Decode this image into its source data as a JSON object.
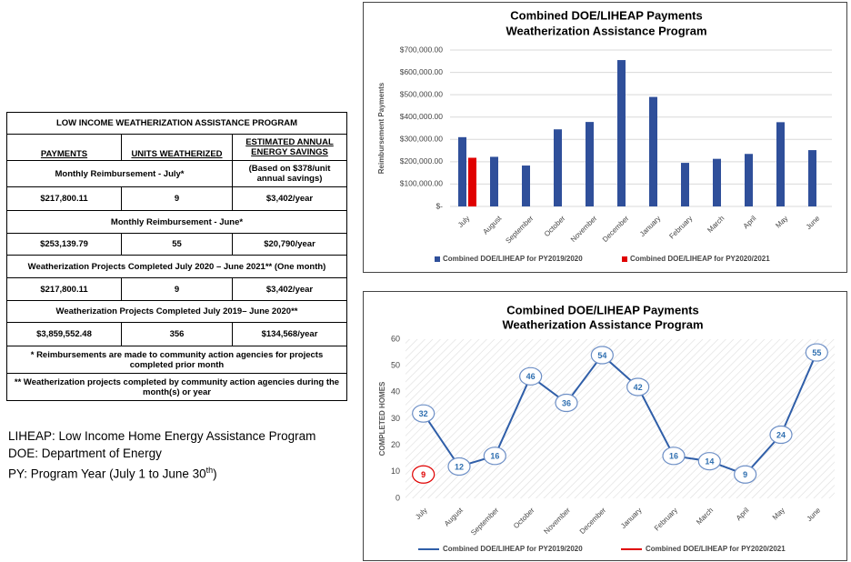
{
  "table": {
    "title": "LOW INCOME WEATHERIZATION ASSISTANCE PROGRAM",
    "headers": [
      "PAYMENTS",
      "UNITS WEATHERIZED",
      "ESTIMATED ANNUAL ENERGY SAVINGS"
    ],
    "rows": [
      [
        "Monthly Reimbursement - July*",
        "(Based on $378/unit annual savings)"
      ],
      [
        "$217,800.11",
        "9",
        "$3,402/year"
      ],
      [
        "Monthly Reimbursement - June*"
      ],
      [
        "$253,139.79",
        "55",
        "$20,790/year"
      ],
      [
        "Weatherization Projects Completed July 2020 – June 2021** (One month)"
      ],
      [
        "$217,800.11",
        "9",
        "$3,402/year"
      ],
      [
        "Weatherization Projects Completed July 2019– June 2020**"
      ],
      [
        "$3,859,552.48",
        "356",
        "$134,568/year"
      ]
    ],
    "footnotes": [
      "* Reimbursements are made to community action agencies for projects completed prior month",
      "** Weatherization projects completed by community action agencies during the month(s) or year"
    ]
  },
  "notes": [
    "LIHEAP: Low Income Home Energy Assistance Program",
    "DOE: Department of Energy",
    {
      "text": "PY: Program Year (July 1 to June 30",
      "sup": "th",
      "tail": ")"
    }
  ],
  "chart_data": [
    {
      "type": "bar",
      "title": "Combined DOE/LIHEAP Payments",
      "subtitle": "Weatherization Assistance Program",
      "y_label": "Reimbursement Payments",
      "categories": [
        "July",
        "August",
        "September",
        "October",
        "November",
        "December",
        "January",
        "February",
        "March",
        "April",
        "May",
        "June"
      ],
      "series": [
        {
          "name": "Combined DOE/LIHEAP for PY2019/2020",
          "color": "#2f4f9a",
          "values": [
            310000,
            222000,
            183000,
            345000,
            378000,
            655000,
            490000,
            195000,
            213000,
            235000,
            377000,
            252000
          ]
        },
        {
          "name": "Combined DOE/LIHEAP for PY2020/2021",
          "color": "#e00000",
          "values": [
            217800.11,
            null,
            null,
            null,
            null,
            null,
            null,
            null,
            null,
            null,
            null,
            null
          ]
        }
      ],
      "ylim": [
        0,
        700000
      ],
      "yticks": [
        {
          "value": 0,
          "label": "$-"
        },
        {
          "value": 100000,
          "label": "$100,000.00"
        },
        {
          "value": 200000,
          "label": "$200,000.00"
        },
        {
          "value": 300000,
          "label": "$300,000.00"
        },
        {
          "value": 400000,
          "label": "$400,000.00"
        },
        {
          "value": 500000,
          "label": "$500,000.00"
        },
        {
          "value": 600000,
          "label": "$600,000.00"
        },
        {
          "value": 700000,
          "label": "$700,000.00"
        }
      ],
      "grid": true,
      "legend": "bottom"
    },
    {
      "type": "line",
      "title": "Combined DOE/LIHEAP Payments",
      "subtitle": "Weatherization Assistance Program",
      "y_label": "COMPLETED HOMES",
      "categories": [
        "July",
        "August",
        "September",
        "October",
        "November",
        "December",
        "January",
        "February",
        "March",
        "April",
        "May",
        "June"
      ],
      "series": [
        {
          "name": "Combined DOE/LIHEAP for PY2019/2020",
          "color": "#2f5ea8",
          "values": [
            32,
            12,
            16,
            46,
            36,
            54,
            42,
            16,
            14,
            9,
            24,
            55
          ]
        },
        {
          "name": "Combined DOE/LIHEAP for PY2020/2021",
          "color": "#e00000",
          "values": [
            9,
            null,
            null,
            null,
            null,
            null,
            null,
            null,
            null,
            null,
            null,
            null
          ]
        }
      ],
      "ylim": [
        0,
        60
      ],
      "yticks": [
        0,
        10,
        20,
        30,
        40,
        50,
        60
      ],
      "grid": false,
      "legend": "bottom"
    }
  ]
}
